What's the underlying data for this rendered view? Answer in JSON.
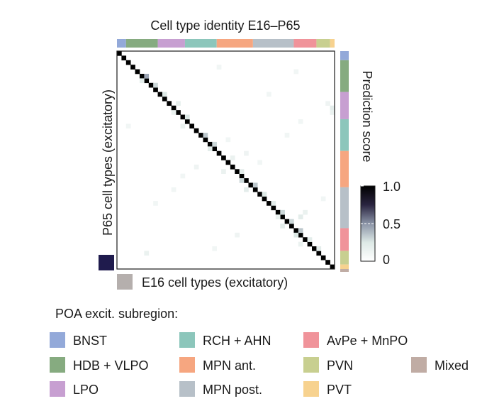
{
  "chart_data": {
    "type": "heatmap",
    "title": "Cell type identity E16–P65",
    "xlabel": "E16 cell types (excitatory)",
    "ylabel": "P65 cell types (excitatory)",
    "colorbar": {
      "label": "Prediction score",
      "ticks": [
        "1.0",
        "0.5",
        "0"
      ],
      "range": [
        0,
        1
      ],
      "colors": [
        "#ffffff",
        "#dde9e6",
        "#8a93a6",
        "#2a2440",
        "#000000"
      ]
    },
    "legend_title": "POA excit. subregion:",
    "legend_placement": "bottom",
    "subregions": [
      {
        "name": "BNST",
        "color": "#93a9d9"
      },
      {
        "name": "HDB + VLPO",
        "color": "#86ab80"
      },
      {
        "name": "LPO",
        "color": "#c79fd1"
      },
      {
        "name": "RCH + AHN",
        "color": "#8cc6bb"
      },
      {
        "name": "MPN ant.",
        "color": "#f6a680"
      },
      {
        "name": "MPN post.",
        "color": "#b7c0c8"
      },
      {
        "name": "AvPe + MnPO",
        "color": "#f0939a"
      },
      {
        "name": "PVN",
        "color": "#c8cf90"
      },
      {
        "name": "PVT",
        "color": "#f7d28f"
      },
      {
        "name": "Mixed",
        "color": "#c0aca4"
      }
    ],
    "n_types": 48,
    "top_bar_counts": [
      2,
      7,
      6,
      7,
      8,
      9,
      5,
      3,
      1
    ],
    "right_bar_counts": [
      2,
      7,
      6,
      7,
      8,
      9,
      5,
      3,
      1
    ],
    "diagonal_score": 1.0,
    "off_diagonal": [
      [
        5,
        6,
        0.45
      ],
      [
        6,
        5,
        0.2
      ],
      [
        7,
        8,
        0.3
      ],
      [
        9,
        10,
        0.25
      ],
      [
        11,
        13,
        0.18
      ],
      [
        13,
        12,
        0.15
      ],
      [
        14,
        15,
        0.25
      ],
      [
        16,
        14,
        0.15
      ],
      [
        18,
        19,
        0.35
      ],
      [
        20,
        21,
        0.3
      ],
      [
        21,
        20,
        0.2
      ],
      [
        23,
        25,
        0.15
      ],
      [
        26,
        27,
        0.2
      ],
      [
        28,
        27,
        0.3
      ],
      [
        29,
        30,
        0.35
      ],
      [
        30,
        28,
        0.2
      ],
      [
        31,
        32,
        0.25
      ],
      [
        33,
        34,
        0.2
      ],
      [
        35,
        36,
        0.3
      ],
      [
        36,
        35,
        0.15
      ],
      [
        37,
        38,
        0.3
      ],
      [
        38,
        36,
        0.2
      ],
      [
        39,
        40,
        0.35
      ],
      [
        40,
        39,
        0.25
      ],
      [
        41,
        42,
        0.2
      ],
      [
        42,
        40,
        0.15
      ],
      [
        43,
        44,
        0.2
      ],
      [
        35,
        41,
        0.15
      ],
      [
        36,
        40,
        0.2
      ],
      [
        44,
        6,
        0.15
      ],
      [
        12,
        47,
        0.2
      ],
      [
        13,
        47,
        0.15
      ],
      [
        16,
        2,
        0.1
      ],
      [
        25,
        17,
        0.12
      ],
      [
        27,
        14,
        0.1
      ],
      [
        30,
        12,
        0.1
      ],
      [
        33,
        8,
        0.1
      ],
      [
        22,
        28,
        0.12
      ],
      [
        24,
        31,
        0.1
      ],
      [
        9,
        33,
        0.1
      ],
      [
        18,
        37,
        0.1
      ],
      [
        40,
        26,
        0.12
      ],
      [
        43,
        21,
        0.1
      ],
      [
        3,
        22,
        0.1
      ],
      [
        15,
        40,
        0.1
      ],
      [
        32,
        45,
        0.1
      ],
      [
        26,
        23,
        0.15
      ],
      [
        19,
        24,
        0.1
      ],
      [
        4,
        39,
        0.1
      ],
      [
        11,
        46,
        0.12
      ]
    ]
  },
  "swatches": {
    "y_axis_color": "#1f1b4d",
    "x_axis_color": "#b5afad"
  }
}
